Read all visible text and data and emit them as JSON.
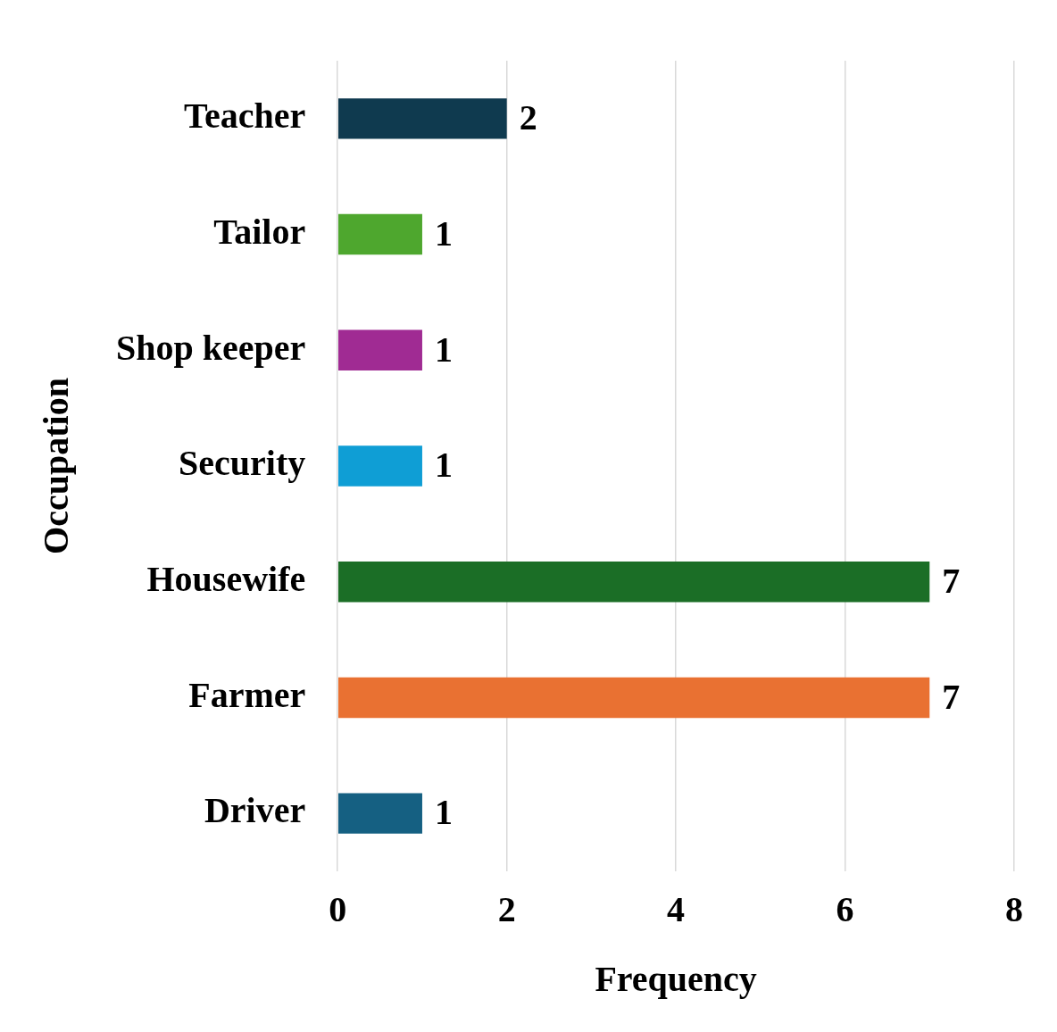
{
  "chart_data": {
    "type": "bar",
    "orientation": "horizontal",
    "xlabel": "Frequency",
    "ylabel": "Occupation",
    "categories": [
      "Teacher",
      "Tailor",
      "Shop keeper",
      "Security",
      "Housewife",
      "Farmer",
      "Driver"
    ],
    "values": [
      2,
      1,
      1,
      1,
      7,
      7,
      1
    ],
    "colors": [
      "#0f3a4f",
      "#4ea72e",
      "#a02b93",
      "#0f9ed5",
      "#1b6e26",
      "#e97132",
      "#156082"
    ],
    "xlim": [
      0,
      8
    ],
    "xticks": [
      0,
      2,
      4,
      6,
      8
    ],
    "grid": "x",
    "data_labels": true,
    "legend": false
  }
}
